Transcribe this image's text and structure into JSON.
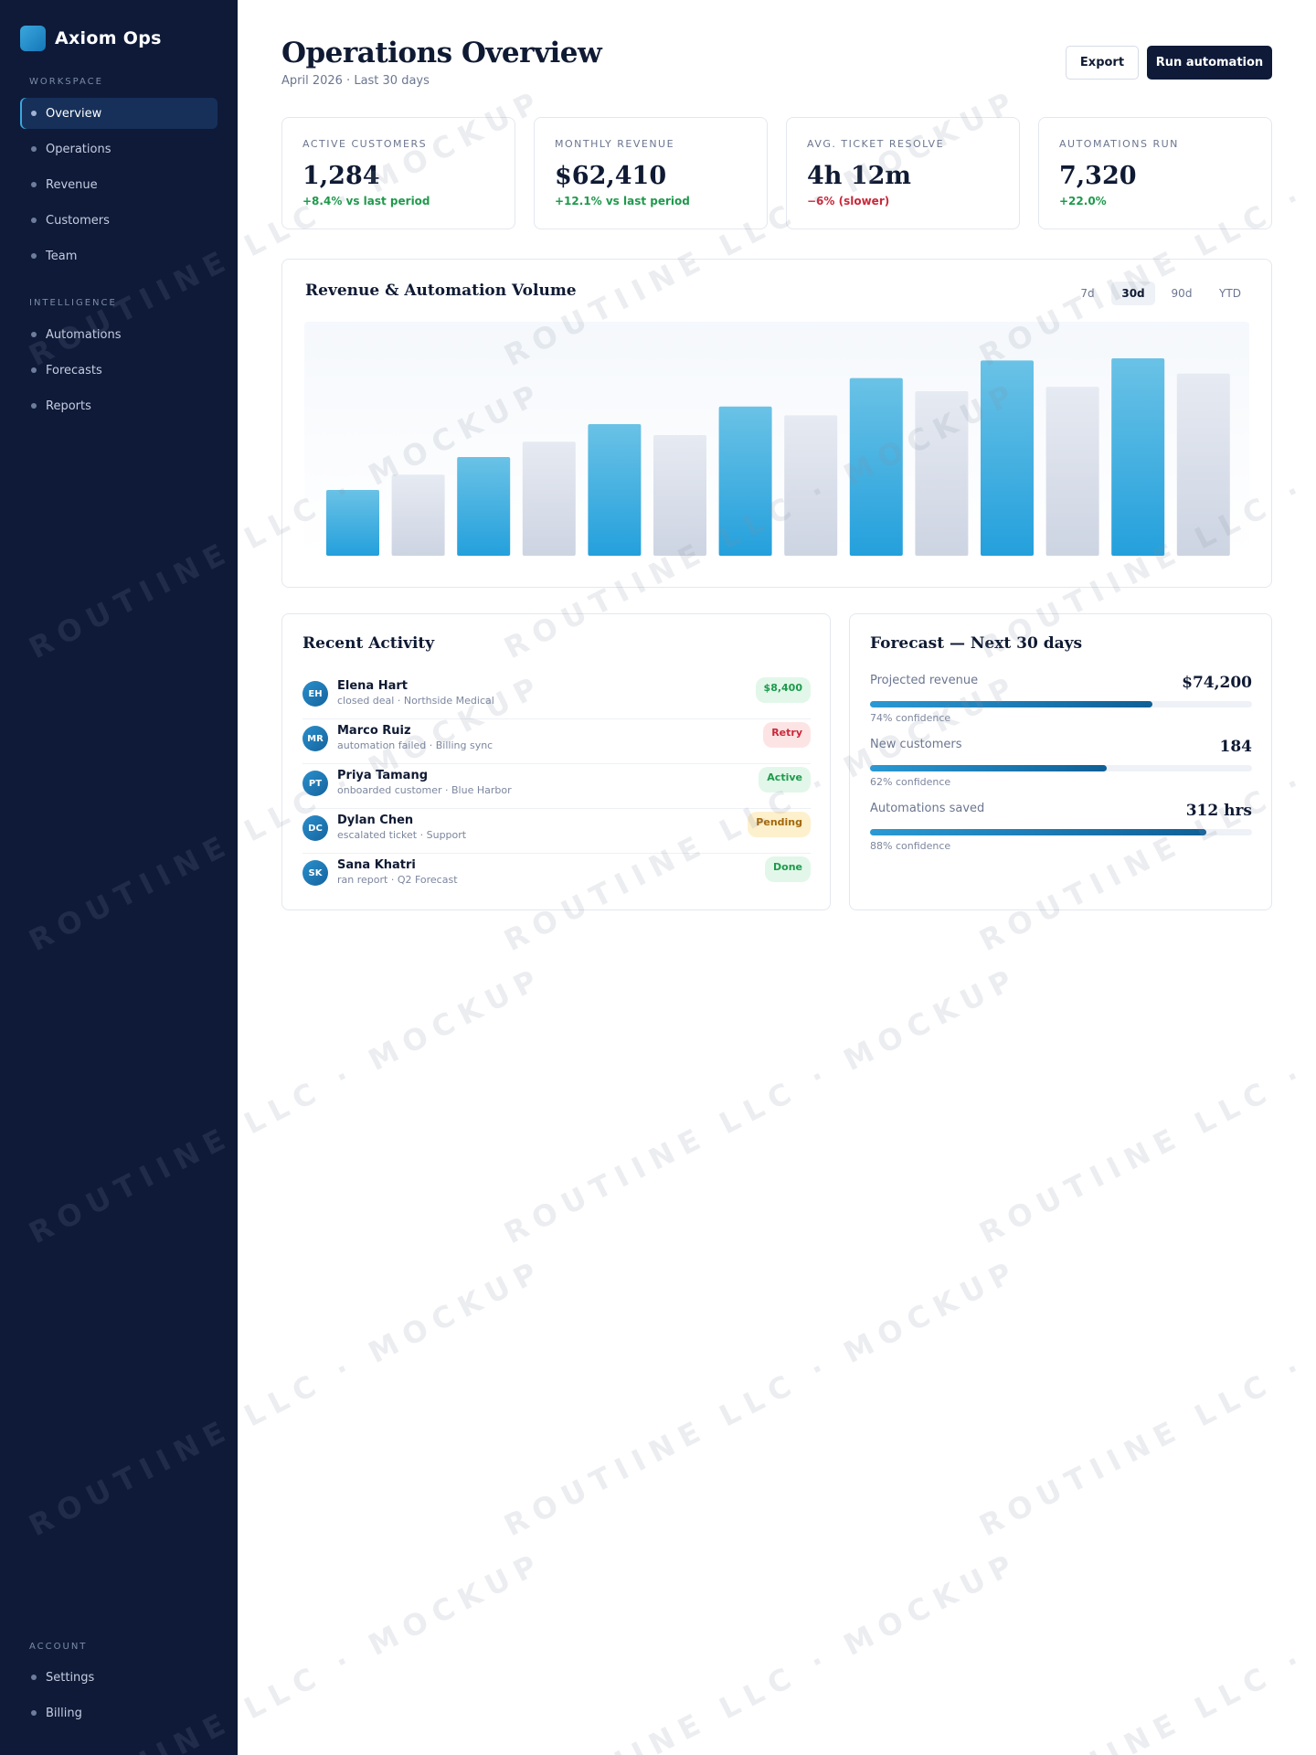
{
  "brand": {
    "name": "Axiom Ops"
  },
  "sidebar": {
    "sections": [
      {
        "label": "WORKSPACE",
        "items": [
          {
            "label": "Overview",
            "active": true
          },
          {
            "label": "Operations"
          },
          {
            "label": "Revenue"
          },
          {
            "label": "Customers"
          },
          {
            "label": "Team"
          }
        ]
      },
      {
        "label": "INTELLIGENCE",
        "items": [
          {
            "label": "Automations"
          },
          {
            "label": "Forecasts"
          },
          {
            "label": "Reports"
          }
        ]
      },
      {
        "label": "ACCOUNT",
        "items": [
          {
            "label": "Settings"
          },
          {
            "label": "Billing"
          }
        ]
      }
    ]
  },
  "header": {
    "title": "Operations Overview",
    "subtitle": "April 2026 · Last 30 days",
    "export_label": "Export",
    "run_label": "Run automation"
  },
  "kpis": [
    {
      "label": "ACTIVE CUSTOMERS",
      "value": "1,284",
      "delta": "+8.4% vs last period",
      "trend": "up"
    },
    {
      "label": "MONTHLY REVENUE",
      "value": "$62,410",
      "delta": "+12.1% vs last period",
      "trend": "up"
    },
    {
      "label": "AVG. TICKET RESOLVE",
      "value": "4h 12m",
      "delta": "−6% (slower)",
      "trend": "down"
    },
    {
      "label": "AUTOMATIONS RUN",
      "value": "7,320",
      "delta": "+22.0%",
      "trend": "up"
    }
  ],
  "chart": {
    "title": "Revenue & Automation Volume",
    "ranges": [
      {
        "label": "7d"
      },
      {
        "label": "30d",
        "active": true
      },
      {
        "label": "90d"
      },
      {
        "label": "YTD"
      }
    ]
  },
  "chart_data": {
    "type": "bar",
    "title": "Revenue & Automation Volume",
    "xlabel": "",
    "ylabel": "",
    "ylim": [
      0,
      100
    ],
    "grid": false,
    "legend": "none",
    "series": [
      {
        "color": "#2ba3dc",
        "values": [
          30,
          45,
          60,
          68,
          81,
          89,
          90
        ]
      },
      {
        "color": "#d3d9e6",
        "values": [
          37,
          52,
          55,
          64,
          75,
          77,
          83
        ]
      }
    ],
    "colors": {
      "primary": "#2ba3dc",
      "secondary": "#d3d9e6"
    }
  },
  "activity": {
    "title": "Recent Activity",
    "items": [
      {
        "initials": "EH",
        "name": "Elena Hart",
        "desc": "closed deal · Northside Medical",
        "badge": "$8,400",
        "tone": "green"
      },
      {
        "initials": "MR",
        "name": "Marco Ruiz",
        "desc": "automation failed · Billing sync",
        "badge": "Retry",
        "tone": "red"
      },
      {
        "initials": "PT",
        "name": "Priya Tamang",
        "desc": "onboarded customer · Blue Harbor",
        "badge": "Active",
        "tone": "green"
      },
      {
        "initials": "DC",
        "name": "Dylan Chen",
        "desc": "escalated ticket · Support",
        "badge": "Pending",
        "tone": "amber"
      },
      {
        "initials": "SK",
        "name": "Sana Khatri",
        "desc": "ran report · Q2 Forecast",
        "badge": "Done",
        "tone": "green"
      }
    ]
  },
  "forecast": {
    "title": "Forecast — Next 30 days",
    "items": [
      {
        "label": "Projected revenue",
        "value": "$74,200",
        "confidence": "74% confidence",
        "fill_pct": 74
      },
      {
        "label": "New customers",
        "value": "184",
        "confidence": "62% confidence",
        "fill_pct": 62
      },
      {
        "label": "Automations saved",
        "value": "312 hrs",
        "confidence": "88% confidence",
        "fill_pct": 88
      }
    ]
  },
  "watermark": {
    "text": "ROUTIINE LLC · MOCKUP"
  }
}
